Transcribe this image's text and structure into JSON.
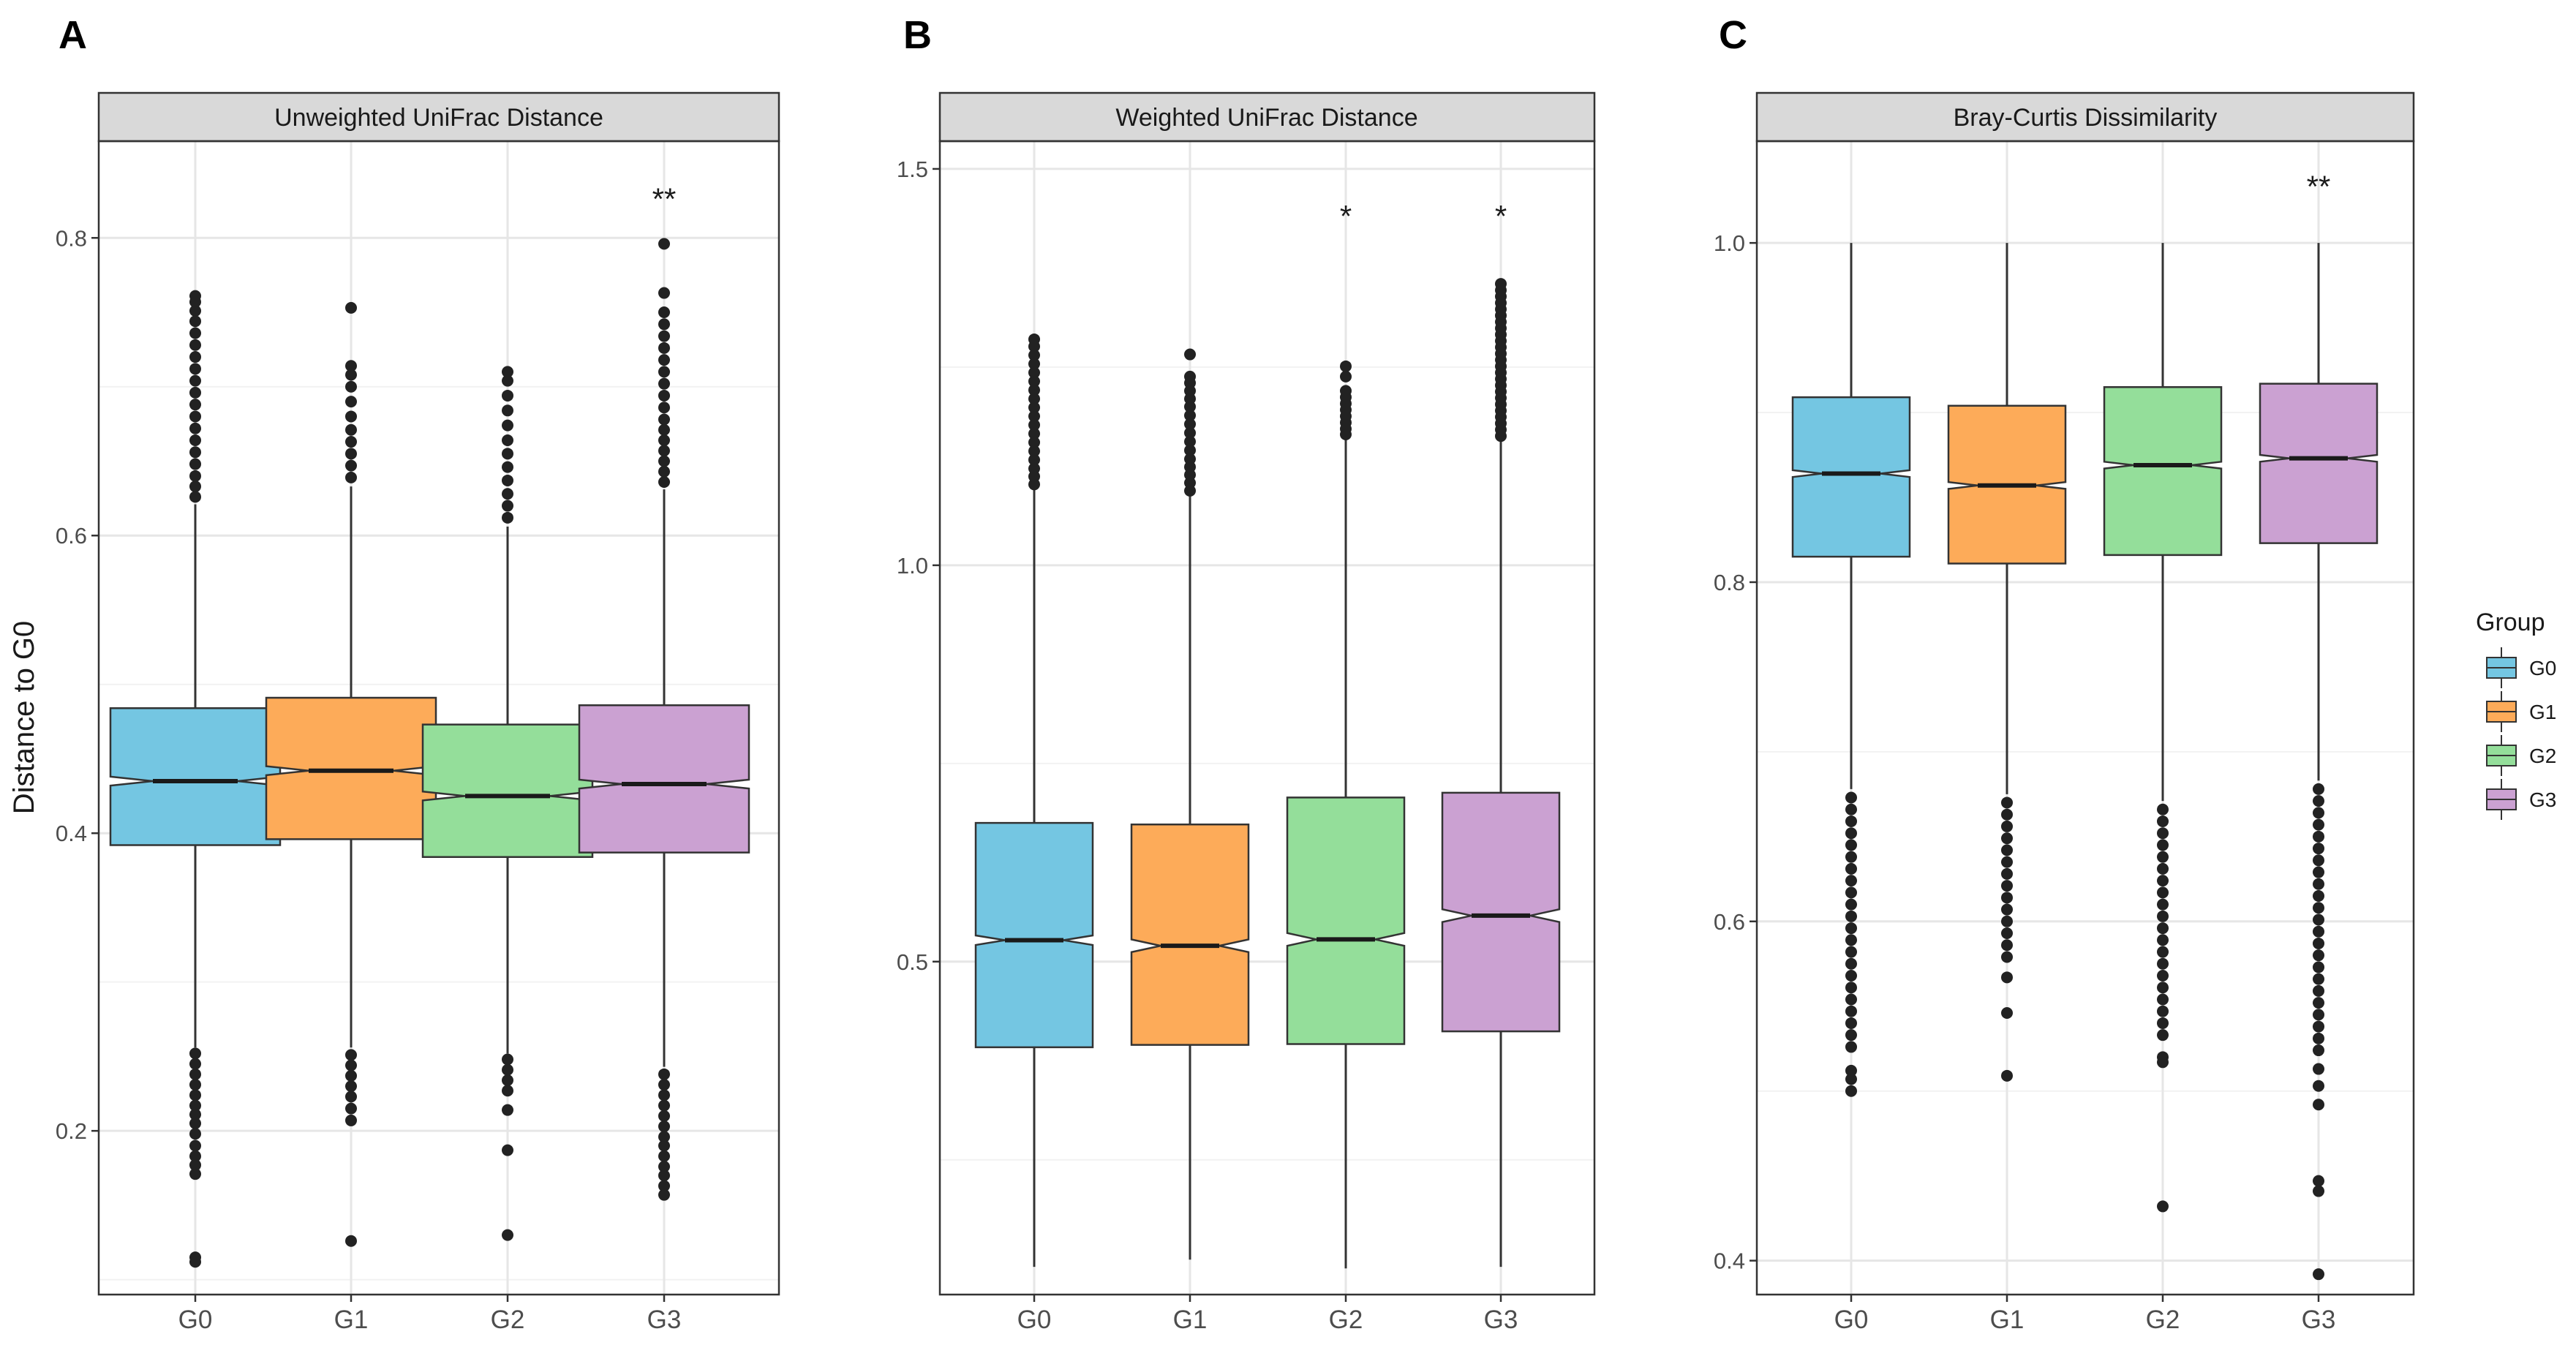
{
  "chart_data": [
    {
      "panel": "A",
      "type": "boxplot",
      "title": "Unweighted UniFrac Distance",
      "ylabel": "Distance to G0",
      "xlabel": "",
      "categories": [
        "G0",
        "G1",
        "G2",
        "G3"
      ],
      "yticks": [
        0.2,
        0.4,
        0.6,
        0.8
      ],
      "ylim": [
        0.09,
        0.865
      ],
      "boxes": [
        {
          "group": "G0",
          "q1": 0.392,
          "median": 0.435,
          "q3": 0.484,
          "whisker_low": 0.256,
          "whisker_high": 0.621,
          "notch": 0.003,
          "outliers_low": [
            0.252,
            0.245,
            0.238,
            0.231,
            0.224,
            0.217,
            0.211,
            0.205,
            0.198,
            0.19,
            0.183,
            0.177,
            0.171,
            0.115,
            0.112
          ],
          "outliers_high": [
            0.626,
            0.633,
            0.64,
            0.648,
            0.656,
            0.664,
            0.672,
            0.68,
            0.688,
            0.696,
            0.704,
            0.712,
            0.72,
            0.728,
            0.736,
            0.744,
            0.751,
            0.757,
            0.761
          ]
        },
        {
          "group": "G1",
          "q1": 0.396,
          "median": 0.442,
          "q3": 0.491,
          "whisker_low": 0.256,
          "whisker_high": 0.633,
          "notch": 0.003,
          "outliers_low": [
            0.251,
            0.244,
            0.237,
            0.23,
            0.223,
            0.215,
            0.207,
            0.126
          ],
          "outliers_high": [
            0.639,
            0.647,
            0.655,
            0.663,
            0.671,
            0.68,
            0.69,
            0.7,
            0.708,
            0.714,
            0.753
          ]
        },
        {
          "group": "G2",
          "q1": 0.384,
          "median": 0.425,
          "q3": 0.473,
          "whisker_low": 0.252,
          "whisker_high": 0.606,
          "notch": 0.003,
          "outliers_low": [
            0.248,
            0.241,
            0.234,
            0.227,
            0.214,
            0.187,
            0.13
          ],
          "outliers_high": [
            0.612,
            0.62,
            0.628,
            0.637,
            0.646,
            0.655,
            0.664,
            0.674,
            0.684,
            0.694,
            0.704,
            0.71
          ]
        },
        {
          "group": "G3",
          "q1": 0.387,
          "median": 0.433,
          "q3": 0.486,
          "whisker_low": 0.243,
          "whisker_high": 0.631,
          "notch": 0.003,
          "outliers_low": [
            0.238,
            0.231,
            0.224,
            0.217,
            0.21,
            0.203,
            0.196,
            0.19,
            0.183,
            0.176,
            0.17,
            0.163,
            0.157
          ],
          "outliers_high": [
            0.636,
            0.643,
            0.65,
            0.657,
            0.664,
            0.671,
            0.678,
            0.686,
            0.694,
            0.702,
            0.71,
            0.718,
            0.726,
            0.734,
            0.742,
            0.75,
            0.763,
            0.796
          ]
        }
      ],
      "annotations": [
        {
          "group": "G3",
          "text": "**",
          "y": 0.826
        }
      ]
    },
    {
      "panel": "B",
      "type": "boxplot",
      "title": "Weighted UniFrac Distance",
      "ylabel": "",
      "xlabel": "",
      "categories": [
        "G0",
        "G1",
        "G2",
        "G3"
      ],
      "yticks": [
        0.5,
        1.0,
        1.5
      ],
      "ytick_labels": [
        "0.5",
        "1.0",
        "1.5"
      ],
      "ylim": [
        0.08,
        1.535
      ],
      "boxes": [
        {
          "group": "G0",
          "q1": 0.392,
          "median": 0.527,
          "q3": 0.675,
          "whisker_low": 0.115,
          "whisker_high": 1.095,
          "notch": 0.006,
          "outliers_low": [],
          "outliers_high": [
            1.102,
            1.112,
            1.122,
            1.133,
            1.144,
            1.155,
            1.166,
            1.177,
            1.188,
            1.199,
            1.21,
            1.221,
            1.232,
            1.243,
            1.254,
            1.265,
            1.276,
            1.285
          ]
        },
        {
          "group": "G1",
          "q1": 0.395,
          "median": 0.52,
          "q3": 0.673,
          "whisker_low": 0.124,
          "whisker_high": 1.087,
          "notch": 0.008,
          "outliers_low": [],
          "outliers_high": [
            1.094,
            1.104,
            1.114,
            1.124,
            1.134,
            1.145,
            1.156,
            1.167,
            1.178,
            1.189,
            1.2,
            1.21,
            1.22,
            1.23,
            1.238,
            1.266
          ]
        },
        {
          "group": "G2",
          "q1": 0.396,
          "median": 0.528,
          "q3": 0.707,
          "whisker_low": 0.113,
          "whisker_high": 1.16,
          "notch": 0.008,
          "outliers_low": [],
          "outliers_high": [
            1.165,
            1.172,
            1.18,
            1.188,
            1.196,
            1.204,
            1.212,
            1.22,
            1.238,
            1.251
          ]
        },
        {
          "group": "G3",
          "q1": 0.412,
          "median": 0.558,
          "q3": 0.713,
          "whisker_low": 0.115,
          "whisker_high": 1.158,
          "notch": 0.008,
          "outliers_low": [],
          "outliers_high": [
            1.163,
            1.171,
            1.179,
            1.187,
            1.195,
            1.203,
            1.211,
            1.219,
            1.227,
            1.235,
            1.243,
            1.251,
            1.259,
            1.267,
            1.275,
            1.283,
            1.291,
            1.299,
            1.307,
            1.315,
            1.323,
            1.331,
            1.339,
            1.347,
            1.355
          ]
        }
      ],
      "annotations": [
        {
          "group": "G2",
          "text": "*",
          "y": 1.44
        },
        {
          "group": "G3",
          "text": "*",
          "y": 1.44
        }
      ]
    },
    {
      "panel": "C",
      "type": "boxplot",
      "title": "Bray-Curtis Dissimilarity",
      "ylabel": "",
      "xlabel": "",
      "categories": [
        "G0",
        "G1",
        "G2",
        "G3"
      ],
      "yticks": [
        0.4,
        0.6,
        0.8,
        1.0
      ],
      "ytick_labels": [
        "0.4",
        "0.6",
        "0.8",
        "1.0"
      ],
      "ylim": [
        0.38,
        1.06
      ],
      "boxes": [
        {
          "group": "G0",
          "q1": 0.815,
          "median": 0.864,
          "q3": 0.909,
          "whisker_low": 0.678,
          "whisker_high": 1.0,
          "notch": 0.002,
          "outliers_low": [
            0.673,
            0.666,
            0.659,
            0.652,
            0.645,
            0.638,
            0.631,
            0.624,
            0.617,
            0.61,
            0.603,
            0.596,
            0.589,
            0.582,
            0.575,
            0.568,
            0.561,
            0.554,
            0.547,
            0.54,
            0.533,
            0.526,
            0.512,
            0.507,
            0.5
          ]
        },
        {
          "group": "G1",
          "q1": 0.811,
          "median": 0.857,
          "q3": 0.904,
          "whisker_low": 0.675,
          "whisker_high": 1.0,
          "notch": 0.002,
          "outliers_low": [
            0.67,
            0.663,
            0.656,
            0.649,
            0.642,
            0.635,
            0.628,
            0.621,
            0.614,
            0.607,
            0.6,
            0.593,
            0.586,
            0.579,
            0.567,
            0.546,
            0.509
          ]
        },
        {
          "group": "G2",
          "q1": 0.816,
          "median": 0.869,
          "q3": 0.915,
          "whisker_low": 0.671,
          "whisker_high": 1.0,
          "notch": 0.002,
          "outliers_low": [
            0.666,
            0.659,
            0.652,
            0.645,
            0.638,
            0.631,
            0.624,
            0.617,
            0.61,
            0.603,
            0.596,
            0.589,
            0.582,
            0.575,
            0.568,
            0.561,
            0.554,
            0.547,
            0.54,
            0.533,
            0.52,
            0.517,
            0.432
          ]
        },
        {
          "group": "G3",
          "q1": 0.823,
          "median": 0.873,
          "q3": 0.917,
          "whisker_low": 0.683,
          "whisker_high": 1.0,
          "notch": 0.002,
          "outliers_low": [
            0.678,
            0.671,
            0.664,
            0.657,
            0.65,
            0.643,
            0.636,
            0.629,
            0.622,
            0.615,
            0.608,
            0.601,
            0.594,
            0.587,
            0.58,
            0.573,
            0.566,
            0.559,
            0.552,
            0.545,
            0.538,
            0.531,
            0.524,
            0.513,
            0.503,
            0.492,
            0.447,
            0.441,
            0.392
          ]
        }
      ],
      "annotations": [
        {
          "group": "G3",
          "text": "**",
          "y": 1.033
        }
      ]
    }
  ],
  "legend": {
    "title": "Group",
    "entries": [
      {
        "label": "G0",
        "color": "#74C6E2"
      },
      {
        "label": "G1",
        "color": "#FDAB59"
      },
      {
        "label": "G2",
        "color": "#94DE9A"
      },
      {
        "label": "G3",
        "color": "#CBA1D2"
      }
    ]
  },
  "colors": {
    "G0": "#74C6E2",
    "G1": "#FDAB59",
    "G2": "#94DE9A",
    "G3": "#CBA1D2",
    "strip": "#D9D9D9",
    "grid": "#EBEBEB",
    "box_line": "#333333"
  }
}
